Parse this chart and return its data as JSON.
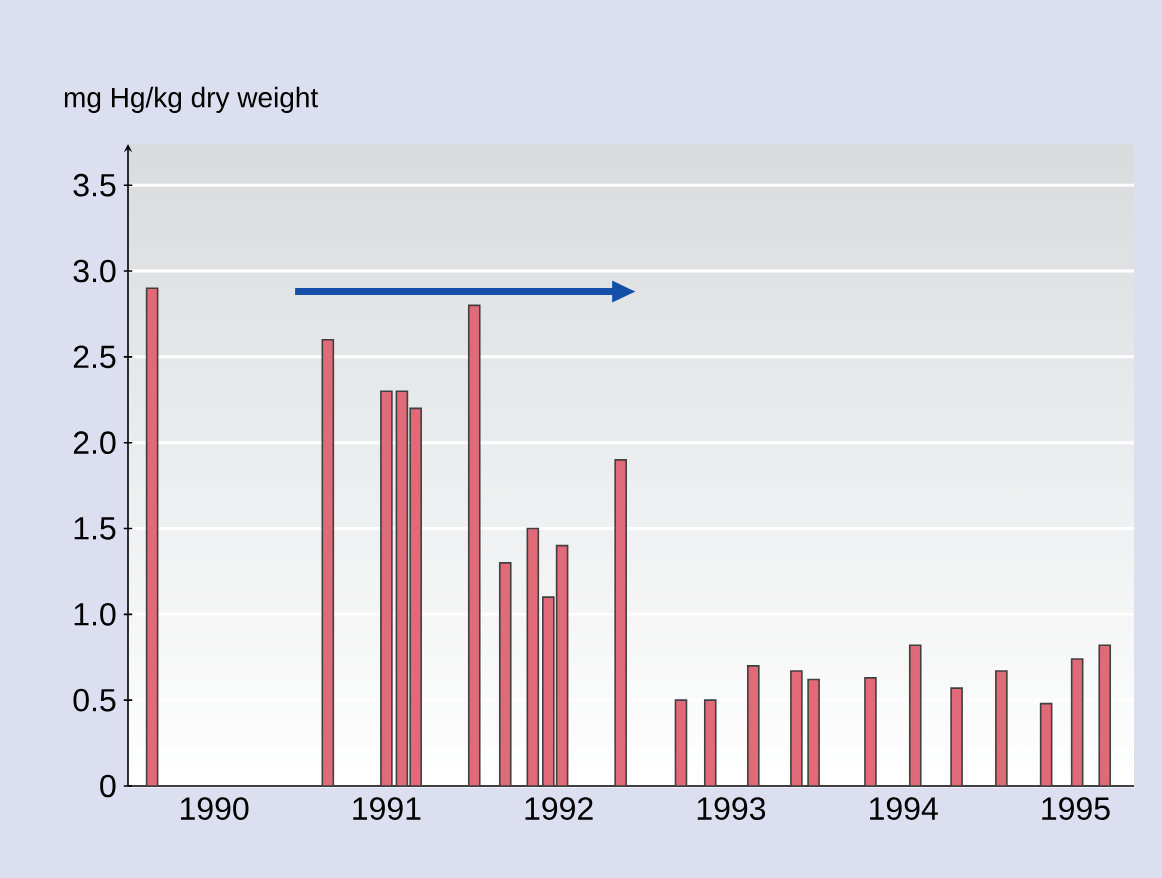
{
  "chart_data": {
    "type": "bar",
    "ylabel": "mg Hg/kg dry weight",
    "x": [
      1990.14,
      1991.16,
      1991.5,
      1991.59,
      1991.67,
      1992.01,
      1992.19,
      1992.35,
      1992.44,
      1992.52,
      1992.86,
      1993.21,
      1993.38,
      1993.63,
      1993.88,
      1993.98,
      1994.31,
      1994.57,
      1994.81,
      1995.07,
      1995.33,
      1995.51,
      1995.67
    ],
    "values": [
      2.9,
      2.6,
      2.3,
      2.3,
      2.2,
      2.8,
      1.3,
      1.5,
      1.1,
      1.4,
      1.9,
      0.5,
      0.5,
      0.7,
      0.67,
      0.62,
      0.63,
      0.82,
      0.57,
      0.67,
      0.48,
      0.74,
      0.82
    ],
    "color": "#e06a78",
    "xlim": [
      1990.0,
      1995.84
    ],
    "xticks": [
      {
        "value": 1990.5,
        "label": "1990"
      },
      {
        "value": 1991.5,
        "label": "1991"
      },
      {
        "value": 1992.5,
        "label": "1992"
      },
      {
        "value": 1993.5,
        "label": "1993"
      },
      {
        "value": 1994.5,
        "label": "1994"
      },
      {
        "value": 1995.5,
        "label": "1995"
      }
    ],
    "ylim": [
      0,
      3.74
    ],
    "yticks": [
      0,
      0.5,
      {
        "value": 1,
        "label": "1.0"
      },
      1.5,
      {
        "value": 2,
        "label": "2.0"
      },
      2.5,
      {
        "value": 3,
        "label": "3.0"
      },
      3.5
    ],
    "grid": "y"
  }
}
